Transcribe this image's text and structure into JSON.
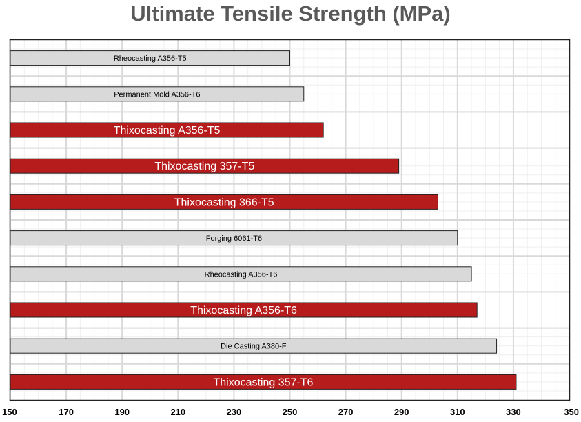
{
  "chart_data": {
    "type": "bar",
    "orientation": "horizontal",
    "title": "Ultimate Tensile Strength (MPa)",
    "xlabel": "",
    "ylabel": "",
    "xlim": [
      150,
      350
    ],
    "x_ticks": [
      150,
      170,
      190,
      210,
      230,
      250,
      270,
      290,
      310,
      330,
      350
    ],
    "grid": true,
    "legend": "none",
    "colors": {
      "highlight": "#b71c1c",
      "default": "#d9d9d9",
      "border": "#222222",
      "grid_major": "#d9d9d9",
      "grid_minor": "#efefef"
    },
    "bars": [
      {
        "label": "Rheocasting A356-T5",
        "value": 250,
        "highlight": false
      },
      {
        "label": "Permanent Mold A356-T6",
        "value": 255,
        "highlight": false
      },
      {
        "label": "Thixocasting A356-T5",
        "value": 262,
        "highlight": true
      },
      {
        "label": "Thixocasting 357-T5",
        "value": 289,
        "highlight": true
      },
      {
        "label": "Thixocasting 366-T5",
        "value": 303,
        "highlight": true
      },
      {
        "label": "Forging 6061-T6",
        "value": 310,
        "highlight": false
      },
      {
        "label": "Rheocasting A356-T6",
        "value": 315,
        "highlight": false
      },
      {
        "label": "Thixocasting A356-T6",
        "value": 317,
        "highlight": true
      },
      {
        "label": "Die Casting A380-F",
        "value": 324,
        "highlight": false
      },
      {
        "label": "Thixocasting 357-T6",
        "value": 331,
        "highlight": true
      }
    ]
  }
}
